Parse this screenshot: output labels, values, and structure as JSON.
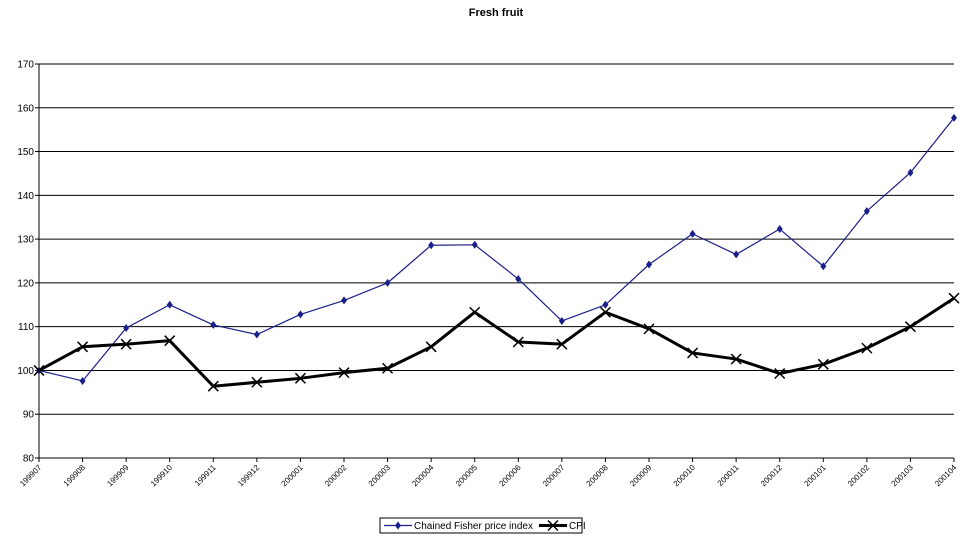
{
  "chart_data": {
    "type": "line",
    "title": "Fresh fruit",
    "categories": [
      "199907",
      "199908",
      "199909",
      "199910",
      "199911",
      "199912",
      "200001",
      "200002",
      "200003",
      "200004",
      "200005",
      "200006",
      "200007",
      "200008",
      "200009",
      "200010",
      "200011",
      "200012",
      "200101",
      "200102",
      "200103",
      "200104"
    ],
    "series": [
      {
        "name": "Chained Fisher price index",
        "color": "#1a1f8a",
        "values": [
          100,
          97.6,
          109.7,
          115,
          110.4,
          108.2,
          112.8,
          116,
          120,
          128.6,
          128.7,
          120.9,
          111.3,
          115,
          124.2,
          131.2,
          126.5,
          132.3,
          123.8,
          136.4,
          145.2,
          157.7
        ]
      },
      {
        "name": "CPI",
        "color": "#000000",
        "values": [
          100,
          105.4,
          106,
          106.8,
          96.4,
          97.3,
          98.2,
          99.5,
          100.5,
          105.4,
          113.3,
          106.5,
          106,
          113.3,
          109.5,
          104,
          102.6,
          99.3,
          101.4,
          105.1,
          110,
          116.5
        ]
      }
    ],
    "ylim": [
      80,
      170
    ],
    "yticks": [
      80,
      90,
      100,
      110,
      120,
      130,
      140,
      150,
      160,
      170
    ],
    "grid": true,
    "legend": "bottom"
  }
}
